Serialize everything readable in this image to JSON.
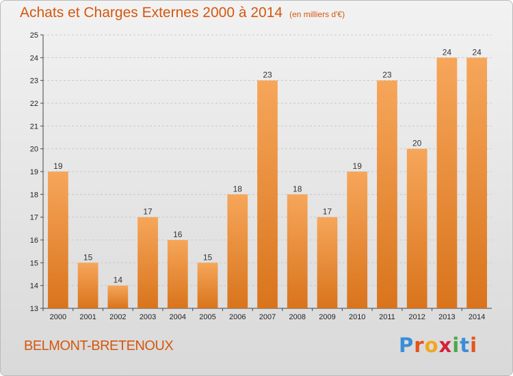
{
  "header": {
    "title": "Achats et Charges Externes 2000 à 2014",
    "unit": "(en milliers d'€)"
  },
  "footer": {
    "commune": "BELMONT-BRETENOUX",
    "logo_letters": [
      "P",
      "r",
      "o",
      "x",
      "i",
      "t",
      "i"
    ],
    "logo_text": "Proxiti"
  },
  "colors": {
    "title": "#d4570d",
    "bar_top": "#f6a65a",
    "bar_bottom": "#d9741c",
    "logo": [
      "#3a8ed8",
      "#e5531b",
      "#f2a81d",
      "#d4213d",
      "#4aa84a",
      "#3a8ed8",
      "#e5531b"
    ]
  },
  "chart_data": {
    "type": "bar",
    "title": "Achats et Charges Externes 2000 à 2014",
    "categories": [
      "2000",
      "2001",
      "2002",
      "2003",
      "2004",
      "2005",
      "2006",
      "2007",
      "2008",
      "2009",
      "2010",
      "2011",
      "2012",
      "2013",
      "2014"
    ],
    "values": [
      19,
      15,
      14,
      17,
      16,
      15,
      18,
      23,
      18,
      17,
      19,
      23,
      20,
      24,
      24
    ],
    "ylim": [
      13,
      25
    ],
    "yticks": [
      13,
      14,
      15,
      16,
      17,
      18,
      19,
      20,
      21,
      22,
      23,
      24,
      25
    ],
    "grid": true,
    "xlabel": "",
    "ylabel": ""
  }
}
